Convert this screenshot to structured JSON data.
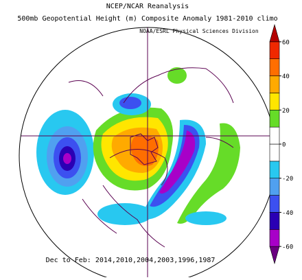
{
  "title": [
    "NCEP/NCAR Reanalysis",
    "500mb Geopotential Height (m) Composite Anomaly 1981-2010 climo"
  ],
  "attribution": "NOAA/ESRL Physical Sciences Division",
  "caption": "Dec to Feb: 2014,2010,2004,2003,1996,1987",
  "colorbar": {
    "lim": [
      -70,
      70
    ],
    "ticks": [
      60,
      40,
      20,
      0,
      -20,
      -40,
      -60
    ],
    "colors": [
      "#6a0080",
      "#a800c8",
      "#2a00b4",
      "#3c50f0",
      "#50a0f0",
      "#28c8f0",
      "#ffffff",
      "#ffffff",
      "#66dc28",
      "#ffe600",
      "#ffaa00",
      "#ff6e00",
      "#f02800",
      "#b40000"
    ]
  }
}
